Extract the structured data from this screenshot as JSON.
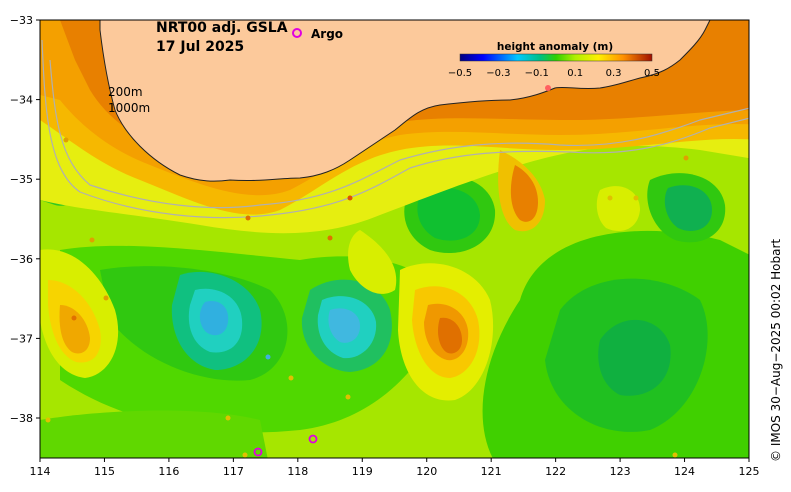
{
  "map": {
    "title_line1": "NRT00 adj. GSLA",
    "title_line2": "17 Jul 2025",
    "argo_label": "Argo",
    "argo_color": "#e000e0",
    "colorbar_title": "height anomaly (m)",
    "colorbar_ticks": [
      "−0.5",
      "−0.3",
      "−0.1",
      "0.1",
      "0.3",
      "0.5"
    ],
    "contour_labels": [
      "200m",
      "1000m"
    ],
    "credit": "© IMOS 30−Aug−2025 00:02 Hobart",
    "x_ticks": [
      "114",
      "115",
      "116",
      "117",
      "118",
      "119",
      "120",
      "121",
      "122",
      "123",
      "124",
      "125"
    ],
    "y_ticks": [
      "−33",
      "−34",
      "−35",
      "−36",
      "−37",
      "−38"
    ],
    "land_color": "#fcc99b",
    "ocean_base_color": "#a0e000"
  }
}
